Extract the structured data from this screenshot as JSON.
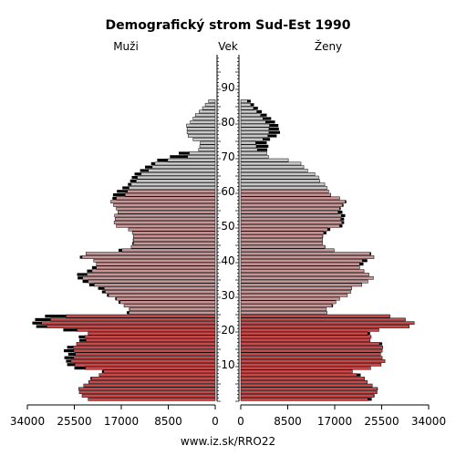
{
  "chart_data": {
    "type": "bar",
    "orientation": "horizontal-mirrored",
    "title": "Demografický strom Sud-Est 1990",
    "left_label": "Muži",
    "center_label": "Vek",
    "right_label": "Ženy",
    "footer": "www.iz.sk/RRO22",
    "x_ticks_left": [
      "34000",
      "25500",
      "17000",
      "8500",
      "0"
    ],
    "x_ticks_right": [
      "0",
      "8500",
      "17000",
      "25500",
      "34000"
    ],
    "x_max": 34000,
    "age_ticks": [
      10,
      20,
      30,
      40,
      50,
      60,
      70,
      80,
      90
    ],
    "age_range": [
      0,
      99
    ],
    "colors": {
      "young": "#cc4848",
      "middle": "#c89696",
      "old": "#c8c8c8",
      "excess": "#000000",
      "outline": "#000000"
    },
    "series": [
      {
        "name": "Muži",
        "values": [
          23000,
          24100,
          24600,
          24700,
          23800,
          22900,
          22600,
          21000,
          20500,
          25500,
          26800,
          27000,
          27300,
          26600,
          27400,
          26800,
          25100,
          24600,
          24700,
          23000,
          27500,
          32400,
          33100,
          32600,
          30800,
          16000,
          15600,
          16500,
          17500,
          18100,
          19600,
          20500,
          21200,
          22800,
          24000,
          24900,
          25000,
          23200,
          22300,
          21500,
          22000,
          24500,
          23400,
          17500,
          15200,
          15000,
          14900,
          14800,
          15000,
          15700,
          17900,
          18300,
          18100,
          18200,
          17600,
          17900,
          18400,
          18900,
          18600,
          18500,
          17800,
          16800,
          15800,
          15400,
          15100,
          14600,
          13600,
          12700,
          11600,
          10500,
          8200,
          6600,
          3000,
          2800,
          2700,
          4000,
          4900,
          5100,
          5100,
          5200,
          4500,
          4000,
          3600,
          2900,
          2300,
          1800,
          1200
        ],
        "values_female_overlay": "see Ženy"
      },
      {
        "name": "Ženy",
        "values": [
          23700,
          24200,
          24700,
          24800,
          23800,
          22900,
          22400,
          21700,
          20200,
          23500,
          25400,
          26100,
          25600,
          25300,
          25600,
          25700,
          25600,
          23400,
          23600,
          23400,
          25000,
          30500,
          31400,
          29800,
          27000,
          15600,
          15500,
          16700,
          17200,
          17900,
          19300,
          19900,
          20100,
          21900,
          23000,
          24000,
          23200,
          22300,
          21500,
          22200,
          22900,
          24100,
          23600,
          16900,
          15300,
          14800,
          14800,
          14900,
          15500,
          16200,
          18400,
          18700,
          18700,
          18900,
          18400,
          18100,
          18600,
          19100,
          17900,
          16300,
          15900,
          15600,
          15200,
          14300,
          14100,
          13400,
          12100,
          11400,
          10900,
          8600,
          5000,
          4700,
          4800,
          5000,
          4700,
          5300,
          6500,
          7100,
          6900,
          6800,
          6200,
          5500,
          4700,
          3800,
          3100,
          2400,
          1800
        ],
        "male_counterpart": [
          23000,
          24100,
          24600,
          24700,
          23800,
          22900,
          22600,
          21000,
          20500,
          25500,
          26800,
          27000,
          27300,
          26600,
          27400,
          26800,
          25100,
          24600,
          24700,
          23000,
          27500,
          32400,
          33100,
          32600,
          30800,
          16000,
          15600,
          16500,
          17500,
          18100,
          19600,
          20500,
          21200,
          22800,
          24000,
          24900,
          25000,
          23200,
          22300,
          21500,
          22000,
          24500,
          23400,
          17500,
          15200,
          15000,
          14900,
          14800,
          15000,
          15700,
          17900,
          18300,
          18100,
          18200,
          17600,
          17900,
          18400,
          18900,
          18600,
          18500,
          17800,
          16800,
          15800,
          15400,
          15100,
          14600,
          13600,
          12700,
          11600,
          10500,
          8200,
          6600,
          3000,
          2800,
          2700,
          4000,
          4900,
          5100,
          5100,
          5200,
          4500,
          4000,
          3600,
          2900,
          2300,
          1800,
          1200
        ]
      }
    ]
  }
}
